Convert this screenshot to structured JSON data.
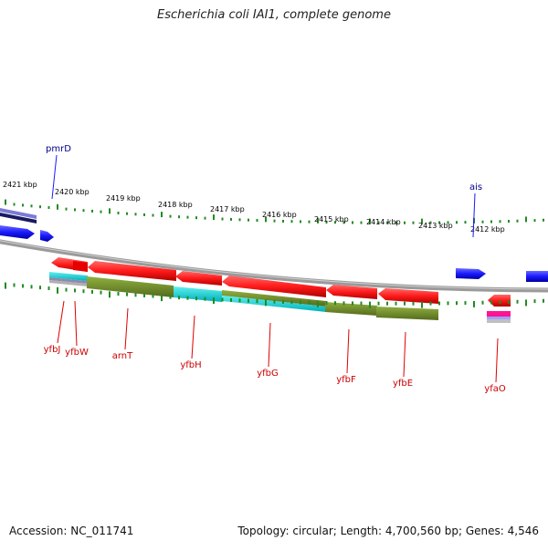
{
  "title": "Escherichia coli IAI1, complete genome",
  "footer": {
    "accession": "Accession: NC_011741",
    "summary": "Topology: circular; Length: 4,700,560 bp; Genes: 4,546"
  },
  "kbp_labels": [
    "2421 kbp",
    "2420 kbp",
    "2419 kbp",
    "2418 kbp",
    "2417 kbp",
    "2416 kbp",
    "2415 kbp",
    "2414 kbp",
    "2413 kbp",
    "2412 kbp"
  ],
  "upper_genes": [
    "pmrD",
    "ais"
  ],
  "lower_genes": [
    "yfbJ",
    "yfbW",
    "arnT",
    "yfbH",
    "yfbG",
    "yfbF",
    "yfbE",
    "yfaO"
  ],
  "colors": {
    "forward_strand": "#1a1aff",
    "reverse_strand": "#ff1a1a",
    "backbone": "#808080",
    "tick": "#228b22",
    "upper_label": "#00008b",
    "lower_label": "#cc0000",
    "cog_olive": "#6b8e23",
    "cog_cyan": "#00d0d0",
    "cog_magenta": "#ff1493"
  }
}
